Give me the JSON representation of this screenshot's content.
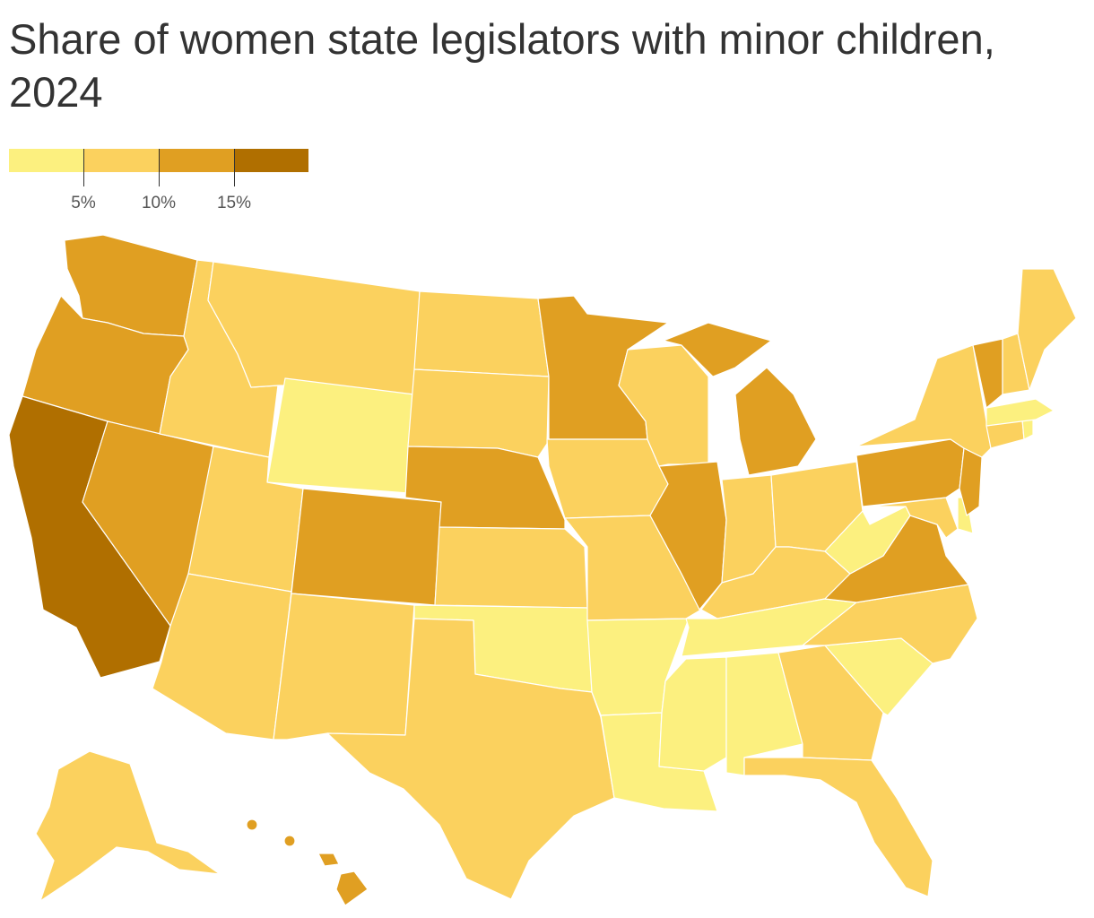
{
  "title": "Share of women state legislators with minor children, 2024",
  "legend": {
    "colors": [
      "#fcf07f",
      "#fbd15e",
      "#e09f22",
      "#b06f00"
    ],
    "ticks": [
      {
        "value": 5,
        "label": "5%"
      },
      {
        "value": 10,
        "label": "10%"
      },
      {
        "value": 15,
        "label": "15%"
      }
    ],
    "domain": [
      0,
      20
    ]
  },
  "map_data": {
    "type": "choropleth",
    "unit": "%",
    "bins": [
      {
        "range": "<5%",
        "color": "#fcf07f",
        "states": [
          "WY",
          "OK",
          "AR",
          "LA",
          "MS",
          "AL",
          "TN",
          "SC",
          "WV",
          "MA",
          "RI",
          "DE"
        ]
      },
      {
        "range": "5-10%",
        "color": "#fbd15e",
        "states": [
          "AK",
          "ID",
          "MT",
          "UT",
          "AZ",
          "NM",
          "TX",
          "ND",
          "SD",
          "KS",
          "IA",
          "MO",
          "WI",
          "IN",
          "OH",
          "KY",
          "NC",
          "GA",
          "FL",
          "NY",
          "NH",
          "ME",
          "CT",
          "MD"
        ]
      },
      {
        "range": "10-15%",
        "color": "#e09f22",
        "states": [
          "WA",
          "OR",
          "NV",
          "CO",
          "NE",
          "MN",
          "IL",
          "MI",
          "PA",
          "NJ",
          "VA",
          "VT",
          "HI"
        ]
      },
      {
        "range": ">15%",
        "color": "#b06f00",
        "states": [
          "CA"
        ]
      }
    ]
  }
}
